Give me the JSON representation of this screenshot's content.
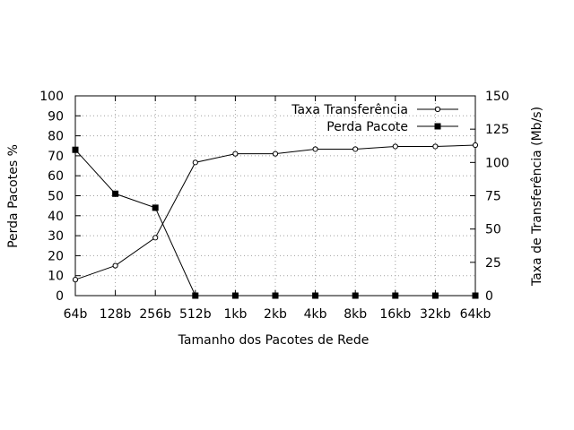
{
  "chart_data": {
    "type": "line",
    "xlabel": "Tamanho dos Pacotes de Rede",
    "ylabel": "Perda Pacotes %",
    "y2label": "Taxa de Transferência (Mb/s)",
    "categories": [
      "64b",
      "128b",
      "256b",
      "512b",
      "1kb",
      "2kb",
      "4kb",
      "8kb",
      "16kb",
      "32kb",
      "64kb"
    ],
    "ylim": [
      0,
      100
    ],
    "yticks": [
      0,
      10,
      20,
      30,
      40,
      50,
      60,
      70,
      80,
      90,
      100
    ],
    "y2lim": [
      0,
      150
    ],
    "y2ticks": [
      0,
      25,
      50,
      75,
      100,
      125,
      150
    ],
    "grid": true,
    "legend_position": "top-right",
    "series": [
      {
        "name": "Taxa Transferência",
        "axis": "right",
        "marker": "open-circle",
        "values": [
          12,
          22.5,
          43.5,
          100,
          106.5,
          106.5,
          110,
          110,
          112,
          112,
          113
        ]
      },
      {
        "name": "Perda Pacote",
        "axis": "left",
        "marker": "filled-square",
        "values": [
          73,
          51,
          44,
          0,
          0,
          0,
          0,
          0,
          0,
          0,
          0
        ]
      }
    ]
  }
}
